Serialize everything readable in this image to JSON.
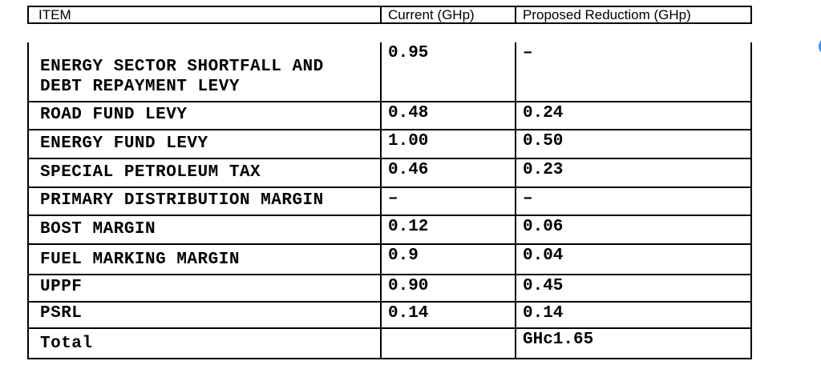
{
  "colors": {
    "border": "#000000",
    "background": "#ffffff",
    "blue_dot": "#3f8cf3"
  },
  "table": {
    "headers": {
      "item": "ITEM",
      "current": "Current (GHp)",
      "proposed": "Proposed Reductiom (GHp)"
    },
    "rows": [
      {
        "item": "ENERGY SECTOR SHORTFALL AND\nDEBT REPAYMENT LEVY",
        "current": "0.95",
        "proposed": "–"
      },
      {
        "item": "ROAD FUND LEVY",
        "current": "0.48",
        "proposed": "0.24"
      },
      {
        "item": "ENERGY FUND LEVY",
        "current": "1.00",
        "proposed": "0.50"
      },
      {
        "item": "SPECIAL PETROLEUM TAX",
        "current": "0.46",
        "proposed": "0.23"
      },
      {
        "item": "PRIMARY DISTRIBUTION MARGIN",
        "current": "–",
        "proposed": "–"
      },
      {
        "item": "BOST MARGIN",
        "current": "0.12",
        "proposed": "0.06"
      },
      {
        "item": "FUEL MARKING MARGIN",
        "current": "0.9",
        "proposed": "0.04"
      },
      {
        "item": "UPPF",
        "current": "0.90",
        "proposed": "0.45"
      },
      {
        "item": "PSRL",
        "current": "0.14",
        "proposed": "0.14"
      },
      {
        "item": "Total",
        "current": "",
        "proposed": "GHc1.65"
      }
    ]
  }
}
